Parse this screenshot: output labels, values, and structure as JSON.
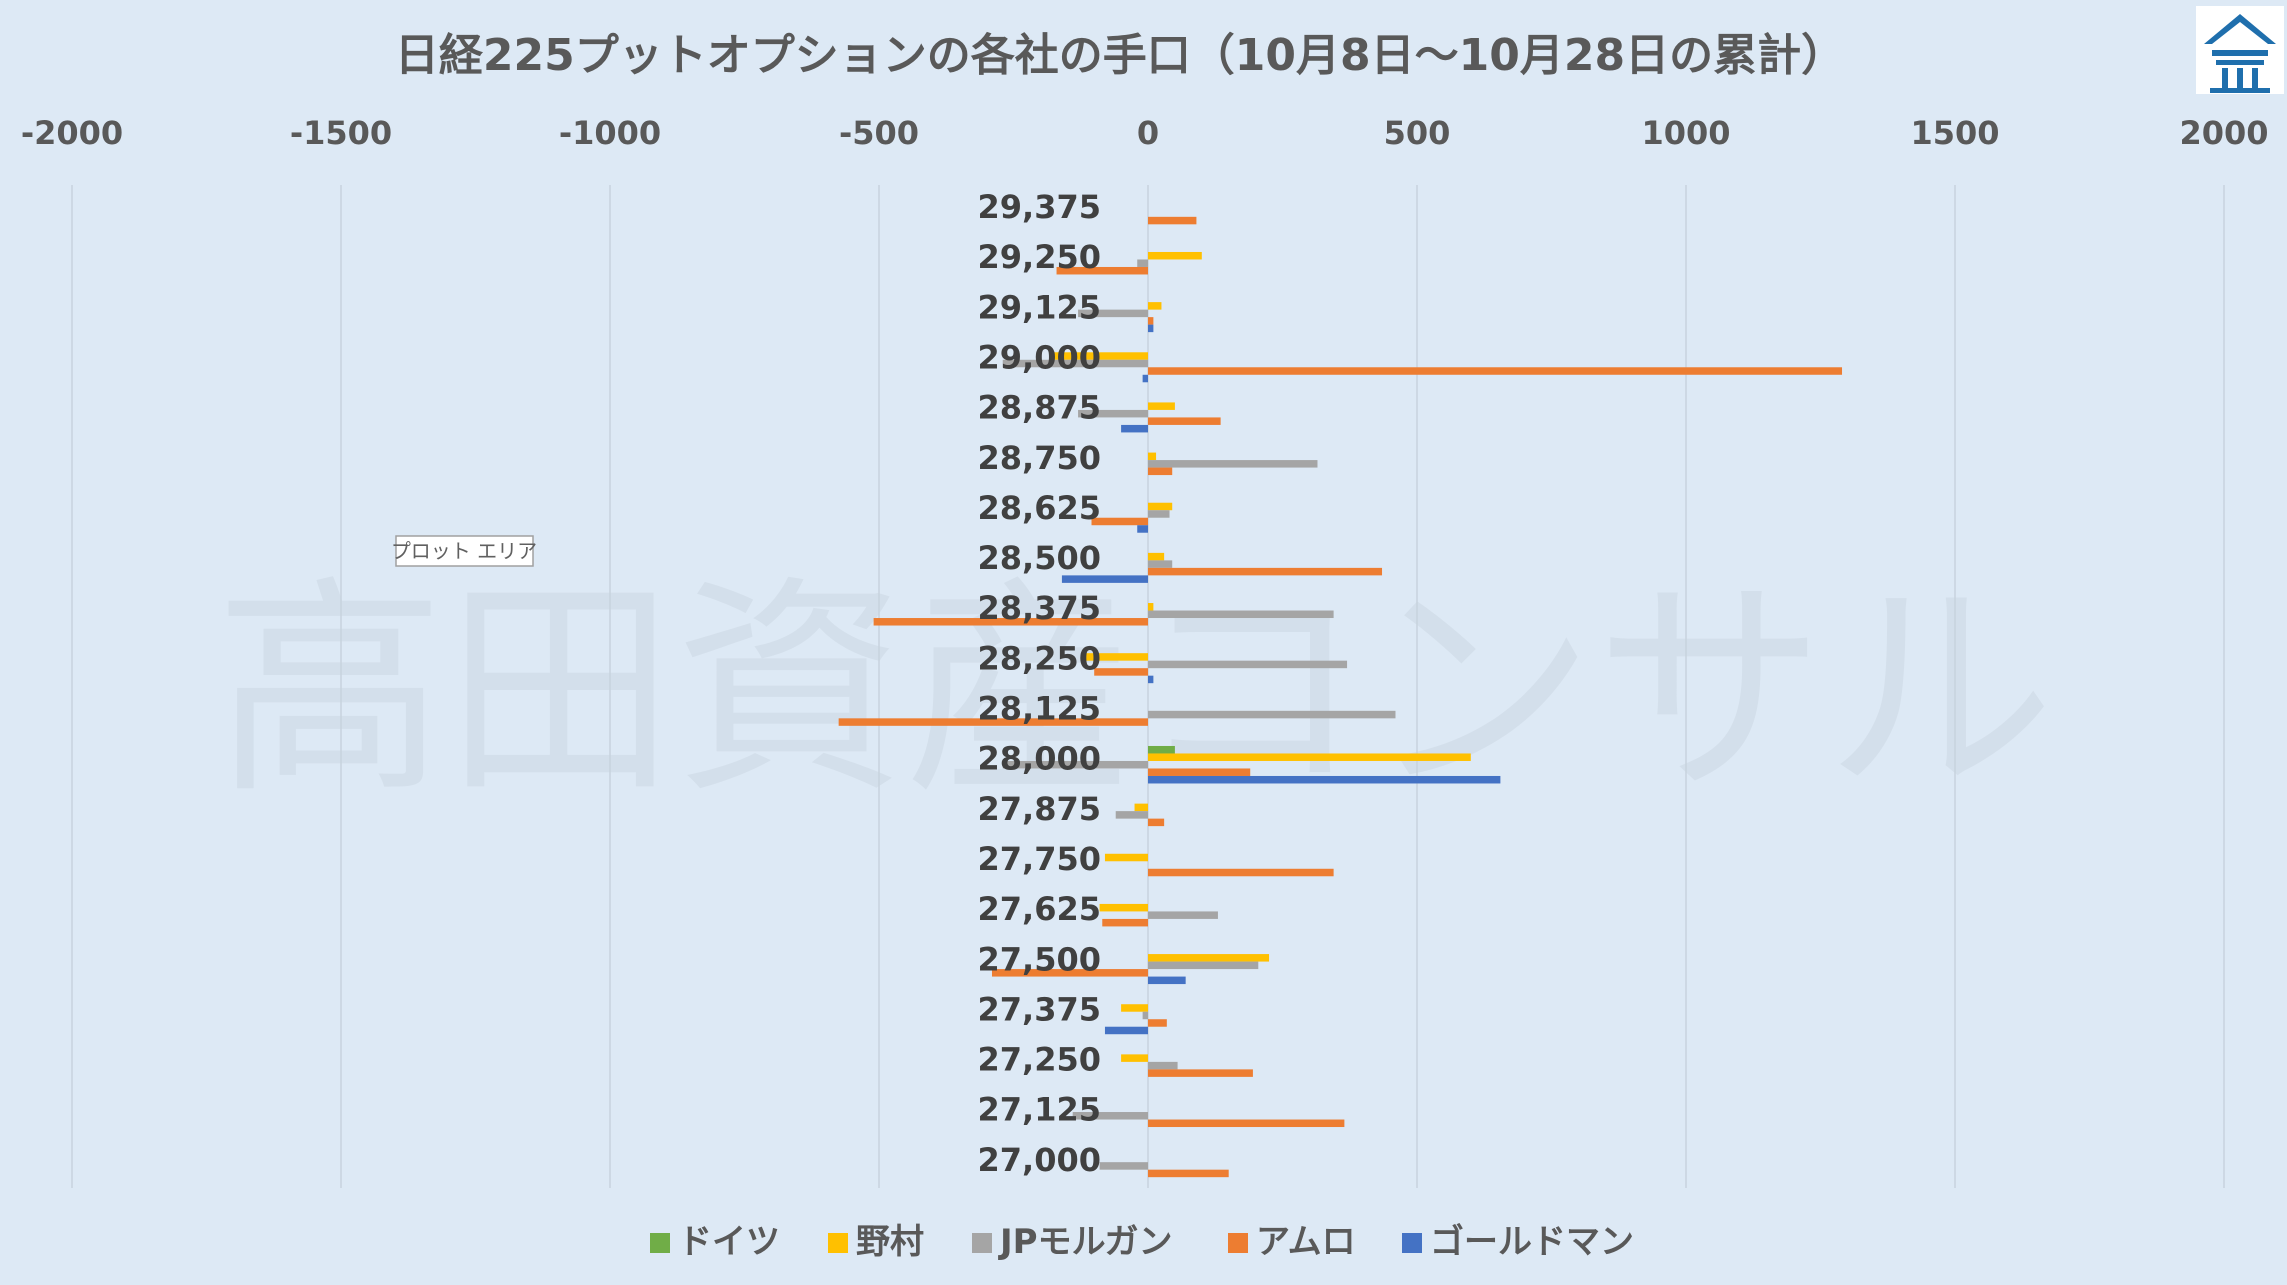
{
  "watermark": "高田資産コンサル",
  "logo": {
    "icon": "house-logo-icon",
    "color": "#1f6fad"
  },
  "tooltip": "プロット エリア",
  "chart_data": {
    "type": "bar",
    "orientation": "horizontal",
    "title": "日経225プットオプションの各社の手口（10月8日～10月28日の累計）",
    "xlim": [
      -2000,
      2000
    ],
    "xticks": [
      "-2000",
      "-1500",
      "-1000",
      "-500",
      "0",
      "500",
      "1000",
      "1500",
      "2000"
    ],
    "xtick_values": [
      -2000,
      -1500,
      -1000,
      -500,
      0,
      500,
      1000,
      1500,
      2000
    ],
    "xaxis_position": "top",
    "grid": "vertical",
    "legend_position": "bottom",
    "categories": [
      "29,375",
      "29,250",
      "29,125",
      "29,000",
      "28,875",
      "28,750",
      "28,625",
      "28,500",
      "28,375",
      "28,250",
      "28,125",
      "28,000",
      "27,875",
      "27,750",
      "27,625",
      "27,500",
      "27,375",
      "27,250",
      "27,125",
      "27,000"
    ],
    "series": [
      {
        "name": "ドイツ",
        "color": "#70ad47",
        "values": [
          0,
          0,
          0,
          0,
          0,
          0,
          0,
          0,
          0,
          0,
          0,
          50,
          0,
          0,
          0,
          0,
          0,
          0,
          0,
          0
        ]
      },
      {
        "name": "野村",
        "color": "#ffc000",
        "values": [
          0,
          100,
          25,
          -180,
          50,
          15,
          45,
          30,
          10,
          -120,
          0,
          600,
          -25,
          -80,
          -90,
          225,
          -50,
          -50,
          0,
          0
        ]
      },
      {
        "name": "JPモルガン",
        "color": "#a5a5a5",
        "values": [
          0,
          -20,
          -130,
          -270,
          -130,
          315,
          40,
          45,
          345,
          370,
          460,
          -270,
          -60,
          0,
          130,
          205,
          -10,
          55,
          -140,
          -90
        ]
      },
      {
        "name": "アムロ",
        "color": "#ed7d31",
        "values": [
          90,
          -170,
          10,
          1290,
          135,
          45,
          -105,
          435,
          -510,
          -100,
          -575,
          190,
          30,
          345,
          -85,
          -290,
          35,
          195,
          365,
          150
        ]
      },
      {
        "name": "ゴールドマン",
        "color": "#4472c4",
        "values": [
          0,
          0,
          10,
          -10,
          -50,
          0,
          -20,
          -160,
          0,
          10,
          0,
          655,
          0,
          0,
          0,
          70,
          -80,
          0,
          0,
          0
        ]
      }
    ]
  }
}
